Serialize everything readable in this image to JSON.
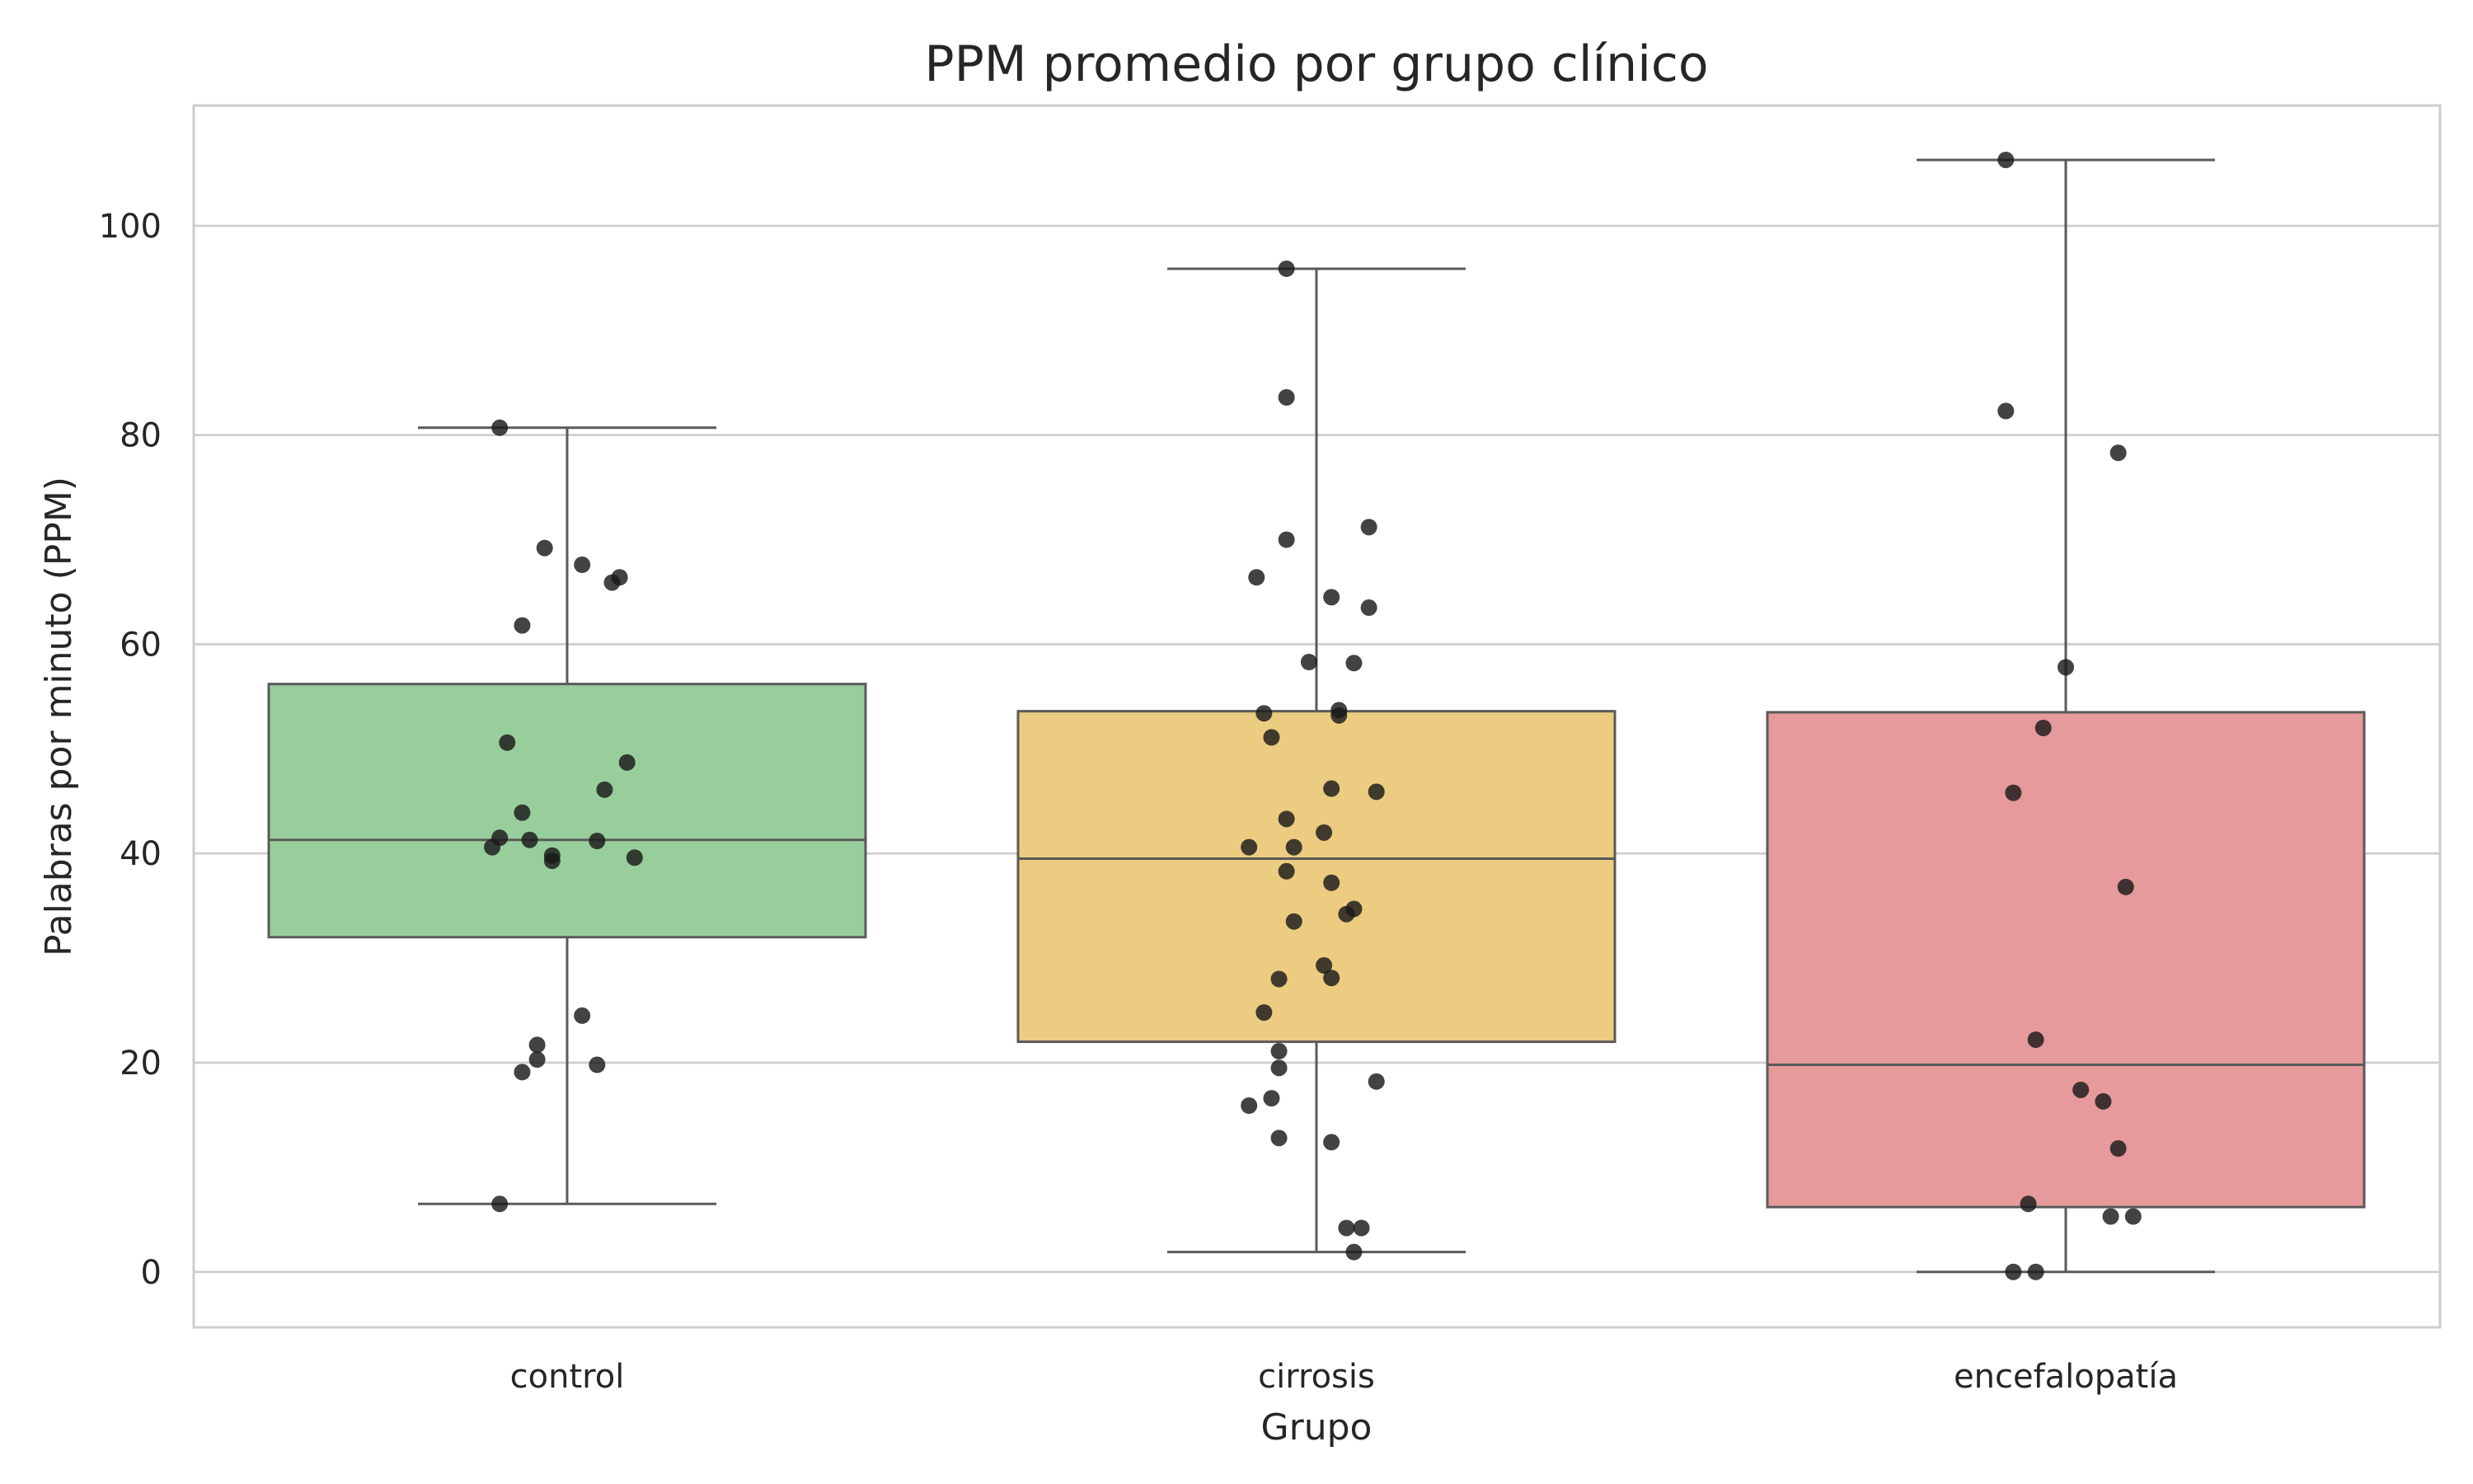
{
  "chart_data": {
    "type": "box",
    "title": "PPM promedio por grupo clínico",
    "xlabel": "Grupo",
    "ylabel": "Palabras por minuto (PPM)",
    "ylim": [
      -5.3,
      111.5
    ],
    "yticks": [
      0,
      20,
      40,
      60,
      80,
      100
    ],
    "grid": true,
    "legend": "none",
    "categories": [
      "control",
      "cirrosis",
      "encefalopatía"
    ],
    "groups": [
      {
        "name": "control",
        "color": "#98CE9B",
        "whisker_low": 6.5,
        "q1": 32.0,
        "median": 41.3,
        "q3": 56.2,
        "whisker_high": 80.7,
        "points": [
          {
            "x": -0.09,
            "y": 80.7
          },
          {
            "x": -0.03,
            "y": 69.2
          },
          {
            "x": 0.02,
            "y": 67.6
          },
          {
            "x": 0.07,
            "y": 66.4
          },
          {
            "x": 0.06,
            "y": 65.9
          },
          {
            "x": -0.06,
            "y": 61.8
          },
          {
            "x": -0.08,
            "y": 50.6
          },
          {
            "x": 0.08,
            "y": 48.7
          },
          {
            "x": 0.05,
            "y": 46.1
          },
          {
            "x": -0.06,
            "y": 43.9
          },
          {
            "x": -0.09,
            "y": 41.5
          },
          {
            "x": -0.05,
            "y": 41.3
          },
          {
            "x": 0.04,
            "y": 41.2
          },
          {
            "x": -0.1,
            "y": 40.6
          },
          {
            "x": -0.02,
            "y": 39.8
          },
          {
            "x": -0.02,
            "y": 39.3
          },
          {
            "x": 0.09,
            "y": 39.6
          },
          {
            "x": 0.02,
            "y": 24.5
          },
          {
            "x": -0.04,
            "y": 21.7
          },
          {
            "x": -0.04,
            "y": 20.3
          },
          {
            "x": -0.06,
            "y": 19.1
          },
          {
            "x": 0.04,
            "y": 19.8
          },
          {
            "x": -0.09,
            "y": 6.5
          }
        ]
      },
      {
        "name": "cirrosis",
        "color": "#EBCC81",
        "whisker_low": 1.9,
        "q1": 22.0,
        "median": 39.5,
        "q3": 53.6,
        "whisker_high": 95.9,
        "points": [
          {
            "x": -0.04,
            "y": 95.9
          },
          {
            "x": -0.04,
            "y": 83.6
          },
          {
            "x": 0.07,
            "y": 71.2
          },
          {
            "x": -0.04,
            "y": 70.0
          },
          {
            "x": -0.08,
            "y": 66.4
          },
          {
            "x": 0.02,
            "y": 64.5
          },
          {
            "x": 0.07,
            "y": 63.5
          },
          {
            "x": -0.01,
            "y": 58.3
          },
          {
            "x": 0.05,
            "y": 58.2
          },
          {
            "x": -0.07,
            "y": 53.4
          },
          {
            "x": 0.03,
            "y": 53.7
          },
          {
            "x": 0.03,
            "y": 53.2
          },
          {
            "x": -0.06,
            "y": 51.1
          },
          {
            "x": 0.02,
            "y": 46.2
          },
          {
            "x": 0.08,
            "y": 45.9
          },
          {
            "x": -0.04,
            "y": 43.3
          },
          {
            "x": 0.01,
            "y": 42.0
          },
          {
            "x": -0.09,
            "y": 40.6
          },
          {
            "x": -0.03,
            "y": 40.6
          },
          {
            "x": -0.04,
            "y": 38.3
          },
          {
            "x": 0.02,
            "y": 37.2
          },
          {
            "x": 0.05,
            "y": 34.7
          },
          {
            "x": 0.04,
            "y": 34.2
          },
          {
            "x": -0.03,
            "y": 33.5
          },
          {
            "x": 0.01,
            "y": 29.3
          },
          {
            "x": -0.05,
            "y": 28.0
          },
          {
            "x": 0.02,
            "y": 28.1
          },
          {
            "x": -0.07,
            "y": 24.8
          },
          {
            "x": -0.05,
            "y": 21.1
          },
          {
            "x": -0.05,
            "y": 19.5
          },
          {
            "x": 0.08,
            "y": 18.2
          },
          {
            "x": -0.06,
            "y": 16.6
          },
          {
            "x": -0.09,
            "y": 15.9
          },
          {
            "x": -0.05,
            "y": 12.8
          },
          {
            "x": 0.02,
            "y": 12.4
          },
          {
            "x": 0.04,
            "y": 4.2
          },
          {
            "x": 0.06,
            "y": 4.2
          },
          {
            "x": 0.05,
            "y": 1.9
          }
        ]
      },
      {
        "name": "encefalopatía",
        "color": "#E69A9B",
        "whisker_low": 0.0,
        "q1": 6.2,
        "median": 19.8,
        "q3": 53.5,
        "whisker_high": 106.3,
        "points": [
          {
            "x": -0.08,
            "y": 106.3
          },
          {
            "x": -0.08,
            "y": 82.3
          },
          {
            "x": 0.07,
            "y": 78.3
          },
          {
            "x": 0.0,
            "y": 57.8
          },
          {
            "x": -0.03,
            "y": 52.0
          },
          {
            "x": -0.07,
            "y": 45.8
          },
          {
            "x": 0.08,
            "y": 36.8
          },
          {
            "x": -0.04,
            "y": 22.2
          },
          {
            "x": 0.02,
            "y": 17.4
          },
          {
            "x": 0.05,
            "y": 16.3
          },
          {
            "x": 0.07,
            "y": 11.8
          },
          {
            "x": -0.05,
            "y": 6.5
          },
          {
            "x": 0.06,
            "y": 5.3
          },
          {
            "x": 0.09,
            "y": 5.3
          },
          {
            "x": -0.07,
            "y": 0.0
          },
          {
            "x": -0.04,
            "y": 0.0
          }
        ]
      }
    ]
  }
}
